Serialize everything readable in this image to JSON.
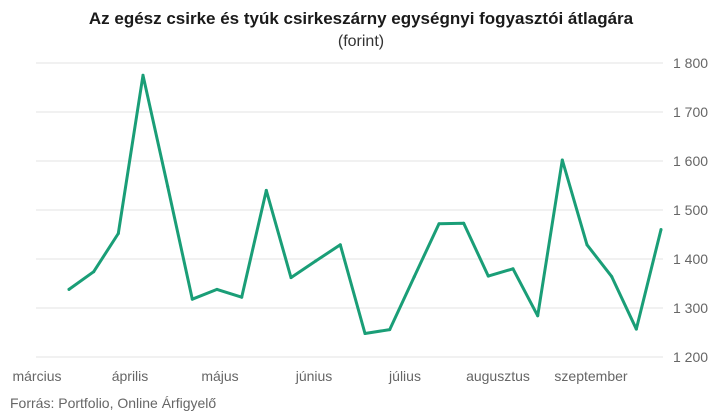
{
  "chart_data": {
    "type": "line",
    "title": "Az egész csirke és tyúk csirkeszárny egységnyi fogyasztói átlagára",
    "subtitle": "(forint)",
    "source": "Forrás: Portfolio, Online Árfigyelő",
    "ylim": [
      1200,
      1800
    ],
    "yticks": [
      1200,
      1300,
      1400,
      1500,
      1600,
      1700,
      1800
    ],
    "ytick_labels": [
      "1 200",
      "1 300",
      "1 400",
      "1 500",
      "1 600",
      "1 700",
      "1 800"
    ],
    "xtick_labels": [
      "március",
      "április",
      "május",
      "június",
      "július",
      "augusztus",
      "szeptember"
    ],
    "grid": true,
    "y_axis_side": "right",
    "series_color": "#1a9e77",
    "series": [
      {
        "values": [
          1338,
          1374,
          1452,
          1775,
          1548,
          1318,
          1338,
          1322,
          1540,
          1362,
          1396,
          1429,
          1248,
          1256,
          1364,
          1472,
          1473,
          1365,
          1380,
          1284,
          1602,
          1429,
          1364,
          1257,
          1460
        ]
      }
    ]
  }
}
